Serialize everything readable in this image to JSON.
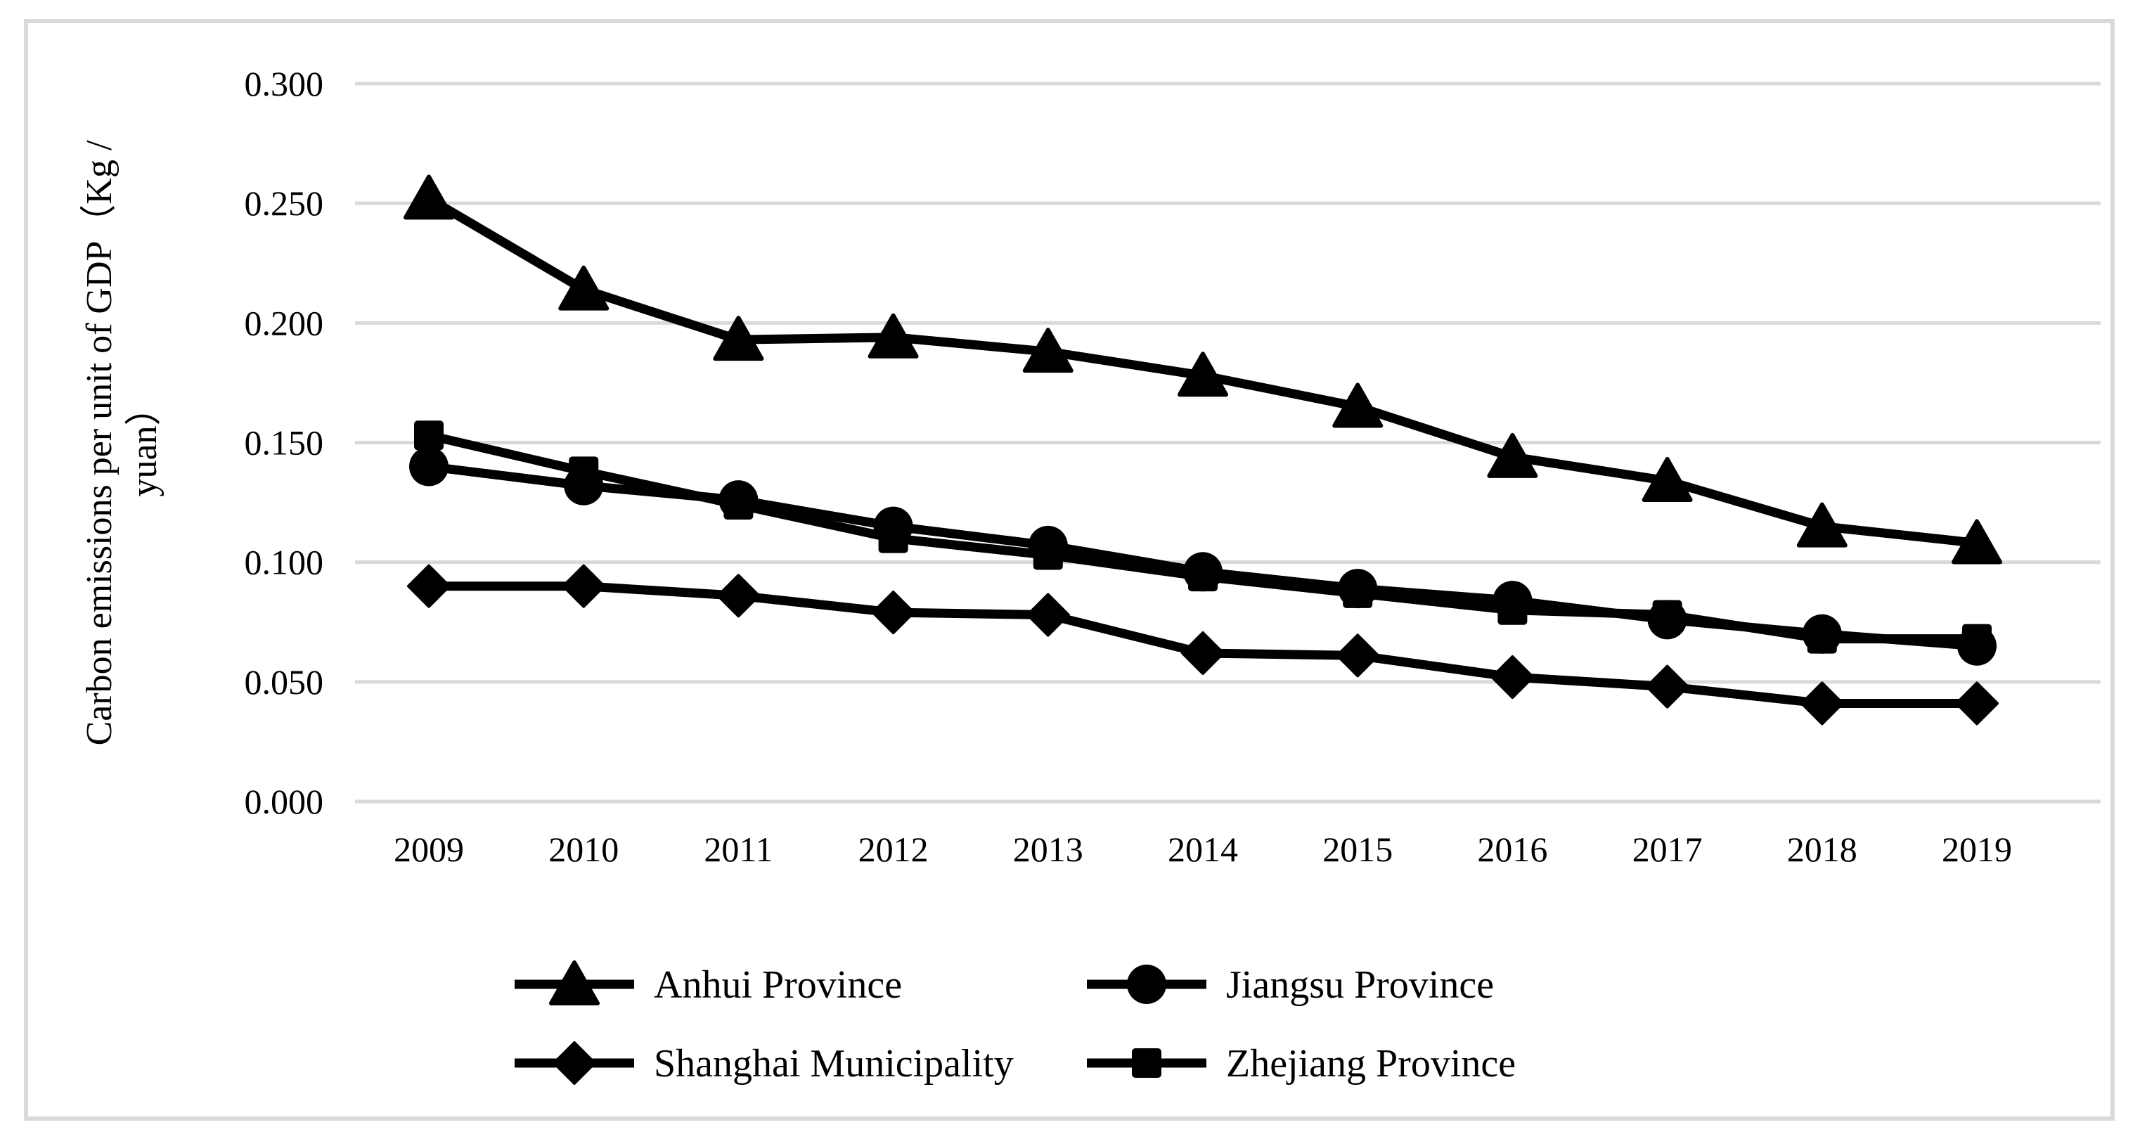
{
  "figure": {
    "background_color": "#ffffff",
    "border_color": "#d9d9d9",
    "gridline_color": "#d9d9d9",
    "series_color": "#000000",
    "text_color": "#000000"
  },
  "chart_data": {
    "type": "line",
    "title": "",
    "ylabel": "Carbon emissions per unit of GDP（Kg / yuan）",
    "ylabel_line1": "Carbon emissions per unit of GDP（Kg /",
    "ylabel_line2": "yuan）",
    "xlabel": "",
    "x_categories": [
      "2009",
      "2010",
      "2011",
      "2012",
      "2013",
      "2014",
      "2015",
      "2016",
      "2017",
      "2018",
      "2019"
    ],
    "y_ticks": [
      "0.000",
      "0.050",
      "0.100",
      "0.150",
      "0.200",
      "0.250",
      "0.300"
    ],
    "ylim": [
      0.0,
      0.3
    ],
    "y_tick_step": 0.05,
    "grid": "horizontal",
    "legend_position": "bottom",
    "legend_rows": 2,
    "series": [
      {
        "name": "Anhui Province",
        "marker": "triangle",
        "color": "#000000",
        "values": [
          0.252,
          0.214,
          0.193,
          0.194,
          0.188,
          0.178,
          0.165,
          0.144,
          0.134,
          0.115,
          0.108
        ]
      },
      {
        "name": "Jiangsu Province",
        "marker": "circle",
        "color": "#000000",
        "values": [
          0.14,
          0.132,
          0.126,
          0.115,
          0.107,
          0.096,
          0.089,
          0.084,
          0.076,
          0.07,
          0.065
        ]
      },
      {
        "name": "Shanghai Municipality",
        "marker": "diamond",
        "color": "#000000",
        "values": [
          0.09,
          0.09,
          0.086,
          0.079,
          0.078,
          0.062,
          0.061,
          0.052,
          0.048,
          0.041,
          0.041
        ]
      },
      {
        "name": "Zhejiang Province",
        "marker": "square",
        "color": "#000000",
        "values": [
          0.153,
          0.138,
          0.124,
          0.11,
          0.103,
          0.094,
          0.087,
          0.08,
          0.078,
          0.068,
          0.068
        ]
      }
    ]
  }
}
